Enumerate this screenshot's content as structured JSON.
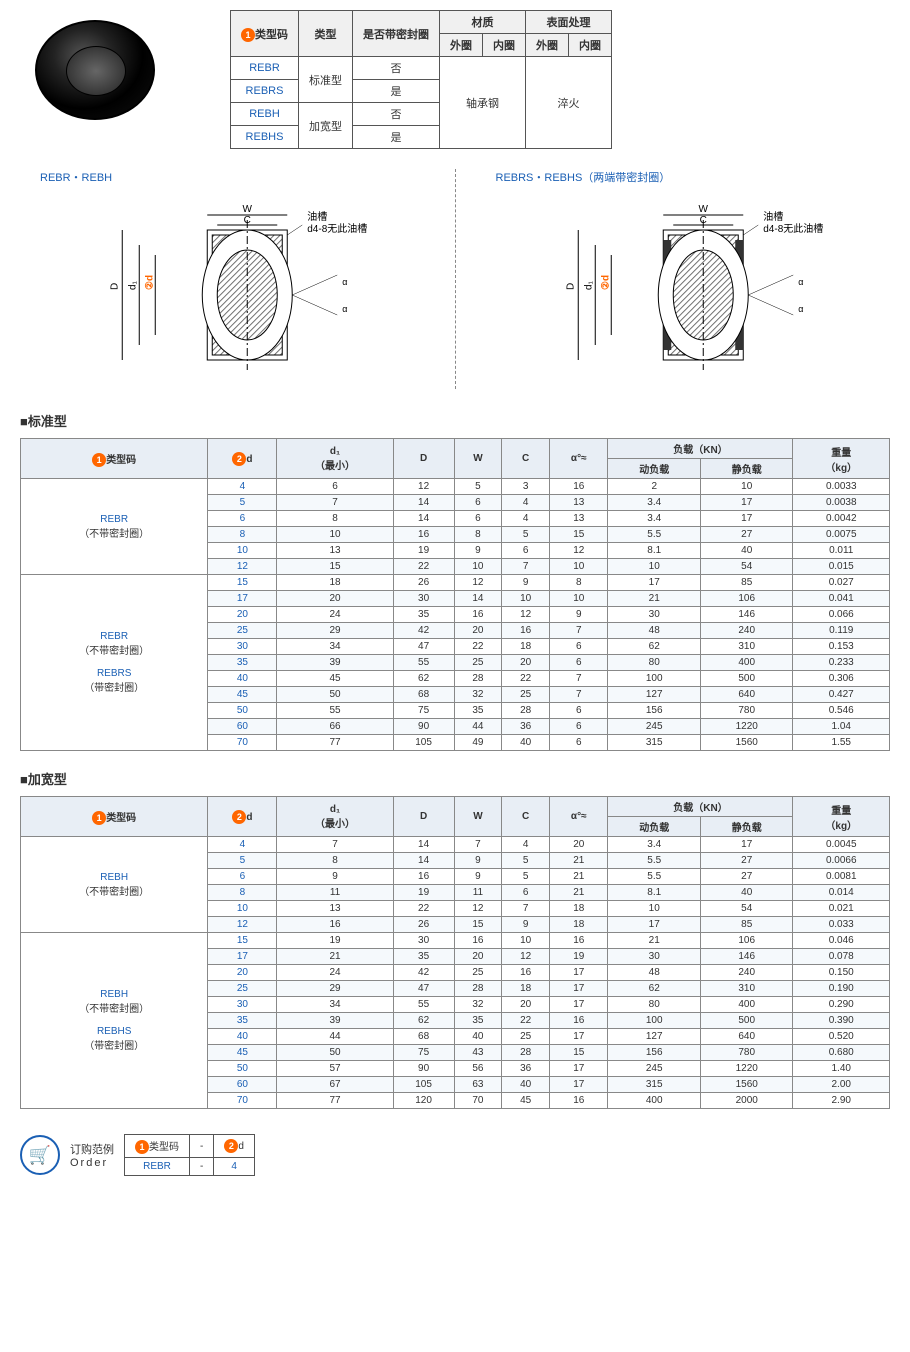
{
  "typeTable": {
    "headers": {
      "code": "类型码",
      "type": "类型",
      "seal": "是否带密封圈",
      "material": "材质",
      "surface": "表面处理",
      "outer": "外圈",
      "inner": "内圈"
    },
    "rows": [
      {
        "code": "REBR",
        "type": "标准型",
        "seal": "否"
      },
      {
        "code": "REBRS",
        "type": "",
        "seal": "是"
      },
      {
        "code": "REBH",
        "type": "加宽型",
        "seal": "否"
      },
      {
        "code": "REBHS",
        "type": "",
        "seal": "是"
      }
    ],
    "material": "轴承钢",
    "surface": "淬火"
  },
  "diagramLabels": {
    "left": "REBR・REBH",
    "right": "REBRS・REBHS（两端带密封圈）",
    "oilGroove": "油槽",
    "noGroove": "d4-8无此油槽"
  },
  "sectionTitles": {
    "standard": "■标准型",
    "wide": "■加宽型"
  },
  "dataHeaders": {
    "code": "类型码",
    "d": "d",
    "d1": "d₁\n（最小）",
    "D": "D",
    "W": "W",
    "C": "C",
    "alpha": "α°≈",
    "load": "负载（KN）",
    "dynamic": "动负载",
    "static": "静负载",
    "weight": "重量\n（kg）"
  },
  "standardGroups": [
    {
      "label": [
        "REBR",
        "（不带密封圈）"
      ],
      "rows": [
        [
          4,
          6,
          12,
          5,
          3,
          16,
          2,
          10,
          "0.0033"
        ],
        [
          5,
          7,
          14,
          6,
          4,
          13,
          3.4,
          17,
          "0.0038"
        ],
        [
          6,
          8,
          14,
          6,
          4,
          13,
          3.4,
          17,
          "0.0042"
        ],
        [
          8,
          10,
          16,
          8,
          5,
          15,
          5.5,
          27,
          "0.0075"
        ],
        [
          10,
          13,
          19,
          9,
          6,
          12,
          8.1,
          40,
          "0.011"
        ],
        [
          12,
          15,
          22,
          10,
          7,
          10,
          10,
          54,
          "0.015"
        ]
      ]
    },
    {
      "label": [
        "REBR",
        "（不带密封圈）",
        "",
        "REBRS",
        "（带密封圈）"
      ],
      "rows": [
        [
          15,
          18,
          26,
          12,
          9,
          8,
          17,
          85,
          "0.027"
        ],
        [
          17,
          20,
          30,
          14,
          10,
          10,
          21,
          106,
          "0.041"
        ],
        [
          20,
          24,
          35,
          16,
          12,
          9,
          30,
          146,
          "0.066"
        ],
        [
          25,
          29,
          42,
          20,
          16,
          7,
          48,
          240,
          "0.119"
        ],
        [
          30,
          34,
          47,
          22,
          18,
          6,
          62,
          310,
          "0.153"
        ],
        [
          35,
          39,
          55,
          25,
          20,
          6,
          80,
          400,
          "0.233"
        ],
        [
          40,
          45,
          62,
          28,
          22,
          7,
          100,
          500,
          "0.306"
        ],
        [
          45,
          50,
          68,
          32,
          25,
          7,
          127,
          640,
          "0.427"
        ],
        [
          50,
          55,
          75,
          35,
          28,
          6,
          156,
          780,
          "0.546"
        ],
        [
          60,
          66,
          90,
          44,
          36,
          6,
          245,
          1220,
          "1.04"
        ],
        [
          70,
          77,
          105,
          49,
          40,
          6,
          315,
          1560,
          "1.55"
        ]
      ]
    }
  ],
  "wideGroups": [
    {
      "label": [
        "REBH",
        "（不带密封圈）"
      ],
      "rows": [
        [
          4,
          7,
          14,
          7,
          4,
          20,
          3.4,
          17,
          "0.0045"
        ],
        [
          5,
          8,
          14,
          9,
          5,
          21,
          5.5,
          27,
          "0.0066"
        ],
        [
          6,
          9,
          16,
          9,
          5,
          21,
          5.5,
          27,
          "0.0081"
        ],
        [
          8,
          11,
          19,
          11,
          6,
          21,
          8.1,
          40,
          "0.014"
        ],
        [
          10,
          13,
          22,
          12,
          7,
          18,
          10,
          54,
          "0.021"
        ],
        [
          12,
          16,
          26,
          15,
          9,
          18,
          17,
          85,
          "0.033"
        ]
      ]
    },
    {
      "label": [
        "REBH",
        "（不带密封圈）",
        "",
        "REBHS",
        "（带密封圈）"
      ],
      "rows": [
        [
          15,
          19,
          30,
          16,
          10,
          16,
          21,
          106,
          "0.046"
        ],
        [
          17,
          21,
          35,
          20,
          12,
          19,
          30,
          146,
          "0.078"
        ],
        [
          20,
          24,
          42,
          25,
          16,
          17,
          48,
          240,
          "0.150"
        ],
        [
          25,
          29,
          47,
          28,
          18,
          17,
          62,
          310,
          "0.190"
        ],
        [
          30,
          34,
          55,
          32,
          20,
          17,
          80,
          400,
          "0.290"
        ],
        [
          35,
          39,
          62,
          35,
          22,
          16,
          100,
          500,
          "0.390"
        ],
        [
          40,
          44,
          68,
          40,
          25,
          17,
          127,
          640,
          "0.520"
        ],
        [
          45,
          50,
          75,
          43,
          28,
          15,
          156,
          780,
          "0.680"
        ],
        [
          50,
          57,
          90,
          56,
          36,
          17,
          245,
          1220,
          "1.40"
        ],
        [
          60,
          67,
          105,
          63,
          40,
          17,
          315,
          1560,
          "2.00"
        ],
        [
          70,
          77,
          120,
          70,
          45,
          16,
          400,
          2000,
          "2.90"
        ]
      ]
    }
  ],
  "order": {
    "title": "订购范例",
    "sub": "Order",
    "headers": [
      "类型码",
      "-",
      "d"
    ],
    "values": [
      "REBR",
      "-",
      "4"
    ]
  },
  "colors": {
    "blue": "#1a5fb4",
    "orange": "#ff6600",
    "headerBg": "#e8eef5",
    "altRow": "#f5f9fc"
  }
}
